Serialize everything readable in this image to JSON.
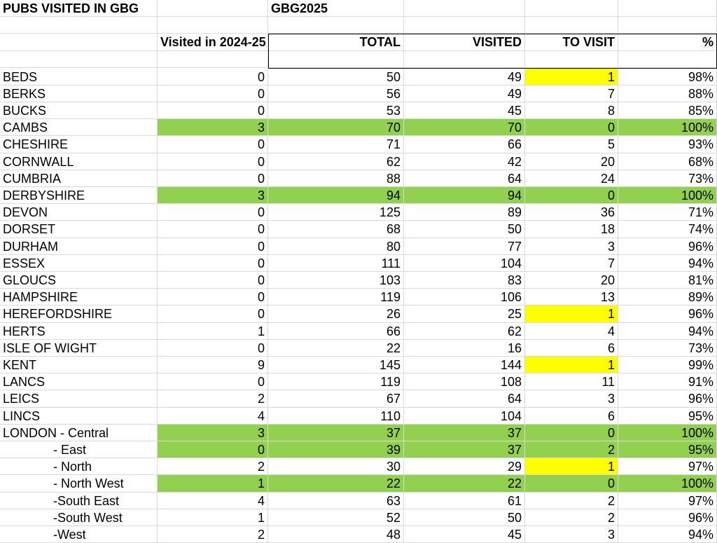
{
  "header": {
    "title": "PUBS VISITED IN GBG",
    "sheet": "GBG2025"
  },
  "columns": [
    "Visited in 2024-25",
    "TOTAL",
    "VISITED",
    "TO VISIT",
    "%"
  ],
  "styles": {
    "row_fill": "#92d050",
    "cell_fill": "#ffff00"
  },
  "rows": [
    {
      "name": "BEDS",
      "cells": [
        0,
        50,
        49,
        1,
        "98%"
      ],
      "mark": "cell"
    },
    {
      "name": "BERKS",
      "cells": [
        0,
        56,
        49,
        7,
        "88%"
      ]
    },
    {
      "name": "BUCKS",
      "cells": [
        0,
        53,
        45,
        8,
        "85%"
      ]
    },
    {
      "name": "CAMBS",
      "cells": [
        3,
        70,
        70,
        0,
        "100%"
      ],
      "mark": "row"
    },
    {
      "name": "CHESHIRE",
      "cells": [
        0,
        71,
        66,
        5,
        "93%"
      ]
    },
    {
      "name": "CORNWALL",
      "cells": [
        0,
        62,
        42,
        20,
        "68%"
      ]
    },
    {
      "name": "CUMBRIA",
      "cells": [
        0,
        88,
        64,
        24,
        "73%"
      ]
    },
    {
      "name": "DERBYSHIRE",
      "cells": [
        3,
        94,
        94,
        0,
        "100%"
      ],
      "mark": "row"
    },
    {
      "name": "DEVON",
      "cells": [
        0,
        125,
        89,
        36,
        "71%"
      ]
    },
    {
      "name": "DORSET",
      "cells": [
        0,
        68,
        50,
        18,
        "74%"
      ]
    },
    {
      "name": "DURHAM",
      "cells": [
        0,
        80,
        77,
        3,
        "96%"
      ]
    },
    {
      "name": "ESSEX",
      "cells": [
        0,
        111,
        104,
        7,
        "94%"
      ]
    },
    {
      "name": "GLOUCS",
      "cells": [
        0,
        103,
        83,
        20,
        "81%"
      ]
    },
    {
      "name": "HAMPSHIRE",
      "cells": [
        0,
        119,
        106,
        13,
        "89%"
      ]
    },
    {
      "name": "HEREFORDSHIRE",
      "cells": [
        0,
        26,
        25,
        1,
        "96%"
      ],
      "mark": "cell"
    },
    {
      "name": "HERTS",
      "cells": [
        1,
        66,
        62,
        4,
        "94%"
      ]
    },
    {
      "name": "ISLE OF WIGHT",
      "cells": [
        0,
        22,
        16,
        6,
        "73%"
      ]
    },
    {
      "name": "KENT",
      "cells": [
        9,
        145,
        144,
        1,
        "99%"
      ],
      "mark": "cell"
    },
    {
      "name": "LANCS",
      "cells": [
        0,
        119,
        108,
        11,
        "91%"
      ]
    },
    {
      "name": "LEICS",
      "cells": [
        2,
        67,
        64,
        3,
        "96%"
      ]
    },
    {
      "name": "LINCS",
      "cells": [
        4,
        110,
        104,
        6,
        "95%"
      ]
    },
    {
      "name": "LONDON - Central",
      "cells": [
        3,
        37,
        37,
        0,
        "100%"
      ],
      "mark": "row"
    },
    {
      "name": "- East",
      "cells": [
        0,
        39,
        37,
        2,
        "95%"
      ],
      "mark": "row"
    },
    {
      "name": "- North",
      "cells": [
        2,
        30,
        29,
        1,
        "97%"
      ],
      "mark": "cell"
    },
    {
      "name": "- North West",
      "cells": [
        1,
        22,
        22,
        0,
        "100%"
      ],
      "mark": "row"
    },
    {
      "name": "-South East",
      "cells": [
        4,
        63,
        61,
        2,
        "97%"
      ]
    },
    {
      "name": "-South West",
      "cells": [
        1,
        52,
        50,
        2,
        "96%"
      ]
    },
    {
      "name": "-West",
      "cells": [
        2,
        48,
        45,
        3,
        "94%"
      ]
    }
  ]
}
